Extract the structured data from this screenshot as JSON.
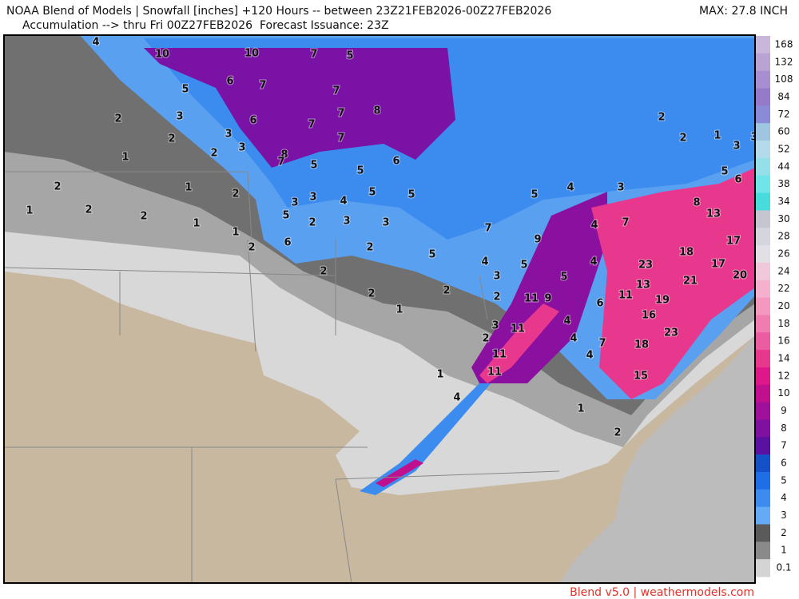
{
  "header": {
    "line1": "NOAA Blend of Models | Snowfall [inches] +120 Hours -- between 23Z21FEB2026-00Z27FEB2026",
    "line2": "Accumulation --> thru Fri 00Z27FEB2026  Forecast Issuance: 23Z",
    "max": "MAX: 27.8 INCH"
  },
  "colorbar": {
    "labels": [
      168,
      132,
      108,
      84,
      72,
      60,
      52,
      44,
      38,
      34,
      30,
      28,
      26,
      24,
      22,
      20,
      18,
      16,
      14,
      12,
      10,
      9,
      8,
      7,
      6,
      5,
      4,
      3,
      2,
      1,
      0.1
    ],
    "colors": [
      "#c9b6d9",
      "#baa2d2",
      "#a88ed0",
      "#9679c9",
      "#8a8ad6",
      "#9fc6e0",
      "#b3dbea",
      "#94dfe8",
      "#6fe5ea",
      "#47dbdb",
      "#c6c6d1",
      "#d5d5dd",
      "#e3dfe7",
      "#f0c8dc",
      "#f4b0cc",
      "#f598c0",
      "#f07cb0",
      "#ec5ca0",
      "#e8388e",
      "#df188a",
      "#c0108e",
      "#a0109a",
      "#8010a0",
      "#5a10a0",
      "#1450c8",
      "#1e6ee6",
      "#3c8cf0",
      "#64aaf4",
      "#5a5a5a",
      "#8a8a8a",
      "#d4d4d4"
    ]
  },
  "map_labels": [
    "4",
    "10",
    "10",
    "7",
    "5",
    "5",
    "6",
    "7",
    "7",
    "3",
    "2",
    "6",
    "7",
    "8",
    "7",
    "3",
    "2",
    "7",
    "3",
    "2",
    "1",
    "8",
    "7",
    "5",
    "5",
    "6",
    "2",
    "1",
    "2",
    "3",
    "4",
    "5",
    "5",
    "3",
    "1",
    "2",
    "2",
    "1",
    "5",
    "2",
    "3",
    "3",
    "1",
    "6",
    "2",
    "2",
    "7",
    "5",
    "2",
    "2",
    "1",
    "2",
    "4",
    "3",
    "2",
    "5",
    "4",
    "3",
    "9",
    "5",
    "4",
    "7",
    "4",
    "5",
    "11",
    "9",
    "6",
    "11",
    "13",
    "23",
    "18",
    "8",
    "13",
    "17",
    "17",
    "21",
    "20",
    "19",
    "16",
    "23",
    "18",
    "15",
    "7",
    "4",
    "4",
    "4",
    "3",
    "2",
    "11",
    "11",
    "11",
    "1",
    "4",
    "1",
    "2",
    "2",
    "2",
    "1",
    "3",
    "3",
    "5",
    "6"
  ],
  "footer": "Blend v5.0 | weathermodels.com"
}
